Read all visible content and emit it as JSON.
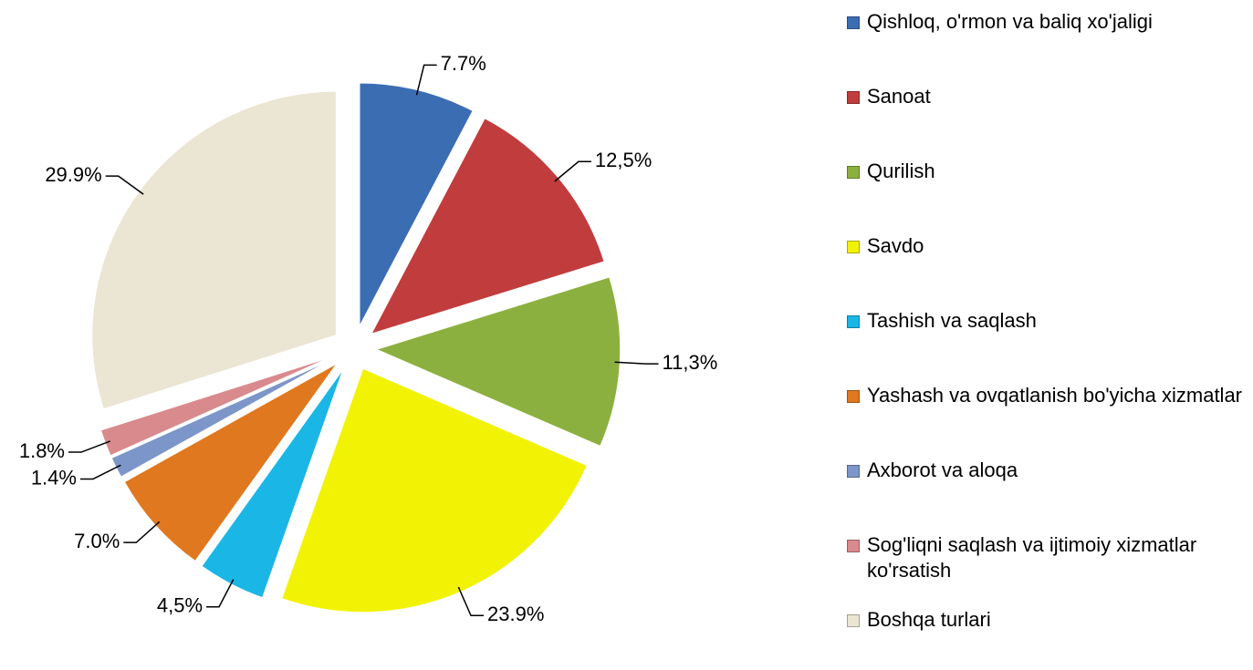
{
  "chart_data": {
    "type": "pie",
    "categories": [
      "Qishloq, o'rmon va baliq xo'jaligi",
      "Sanoat",
      "Qurilish",
      "Savdo",
      "Tashish va saqlash",
      "Yashash va ovqatlanish bo'yicha xizmatlar",
      "Axborot va aloqa",
      "Sog'liqni saqlash va ijtimoiy xizmatlar ko'rsatish",
      "Boshqa turlari"
    ],
    "values": [
      7.7,
      12.5,
      11.3,
      23.9,
      4.5,
      7.0,
      1.4,
      1.8,
      29.9
    ],
    "value_labels": [
      "7.7%",
      "12,5%",
      "11,3%",
      "23.9%",
      "4,5%",
      "7.0%",
      "1.4%",
      "1.8%",
      "29.9%"
    ],
    "colors": [
      "#3b6db3",
      "#c13c3d",
      "#8cb03f",
      "#f2f205",
      "#1ab6e6",
      "#e0781f",
      "#7c96c9",
      "#d98a8d",
      "#ebe5d3"
    ],
    "legend": "right"
  }
}
